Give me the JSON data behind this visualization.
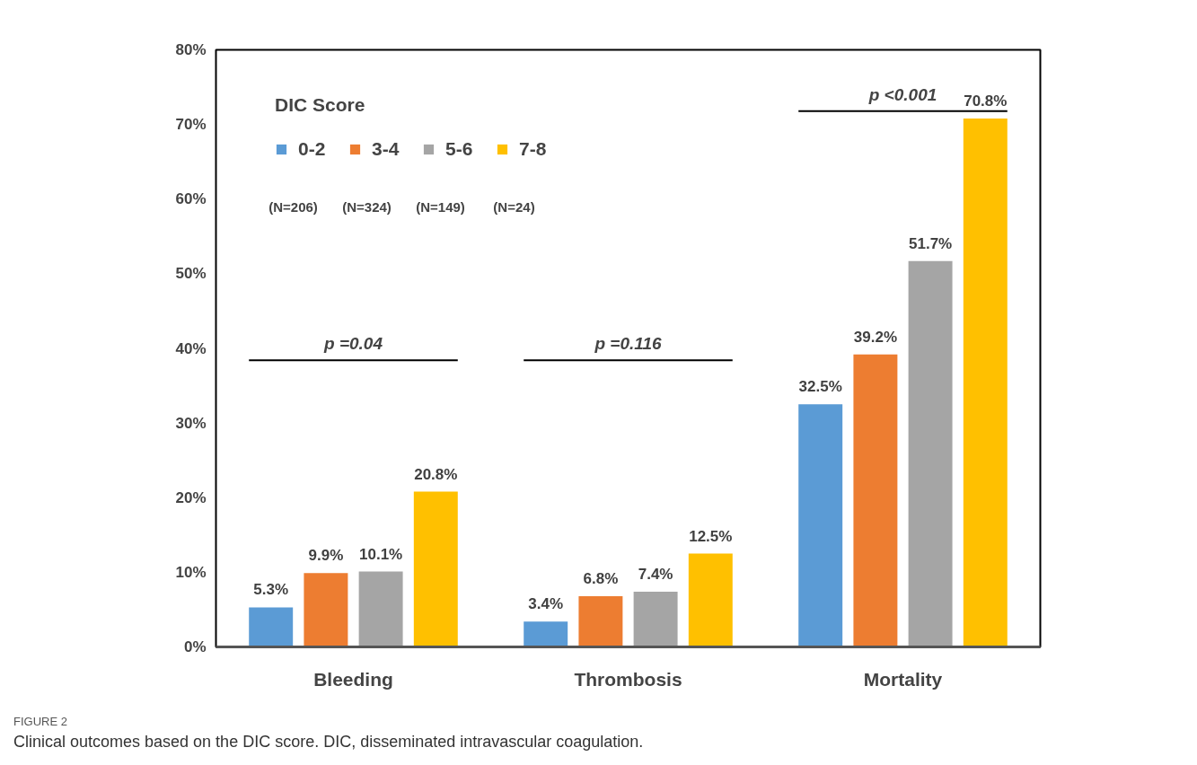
{
  "chart_data": {
    "type": "bar",
    "categories": [
      "Bleeding",
      "Thrombosis",
      "Mortality"
    ],
    "legend_title": "DIC Score",
    "legend": "top left",
    "grid": false,
    "ylim": [
      0,
      80
    ],
    "yticks": [
      {
        "value": 0,
        "label": "0%"
      },
      {
        "value": 10,
        "label": "10%"
      },
      {
        "value": 20,
        "label": "20%"
      },
      {
        "value": 30,
        "label": "30%"
      },
      {
        "value": 40,
        "label": "40%"
      },
      {
        "value": 50,
        "label": "50%"
      },
      {
        "value": 60,
        "label": "60%"
      },
      {
        "value": 70,
        "label": "70%"
      },
      {
        "value": 80,
        "label": "80%"
      }
    ],
    "series": [
      {
        "name": "0-2",
        "color": "#5b9bd5",
        "values": [
          5.3,
          3.4,
          32.5
        ],
        "value_labels": [
          "5.3%",
          "3.4%",
          "32.5%"
        ]
      },
      {
        "name": "3-4",
        "color": "#ed7d31",
        "values": [
          9.9,
          6.8,
          39.2
        ],
        "value_labels": [
          "9.9%",
          "6.8%",
          "39.2%"
        ]
      },
      {
        "name": "5-6",
        "color": "#a5a5a5",
        "values": [
          10.1,
          7.4,
          51.7
        ],
        "value_labels": [
          "10.1%",
          "7.4%",
          "51.7%"
        ]
      },
      {
        "name": "7-8",
        "color": "#ffc000",
        "values": [
          20.8,
          12.5,
          70.8
        ],
        "value_labels": [
          "20.8%",
          "12.5%",
          "70.8%"
        ]
      }
    ],
    "annotations": [
      "(N=206)",
      "(N=324)",
      "(N=149)",
      "(N=24)",
      "p =0.04",
      "p =0.116",
      "p <0.001",
      "FIGURE 2",
      "Clinical outcomes based on the DIC score. DIC, disseminated intravascular coagulation."
    ]
  }
}
